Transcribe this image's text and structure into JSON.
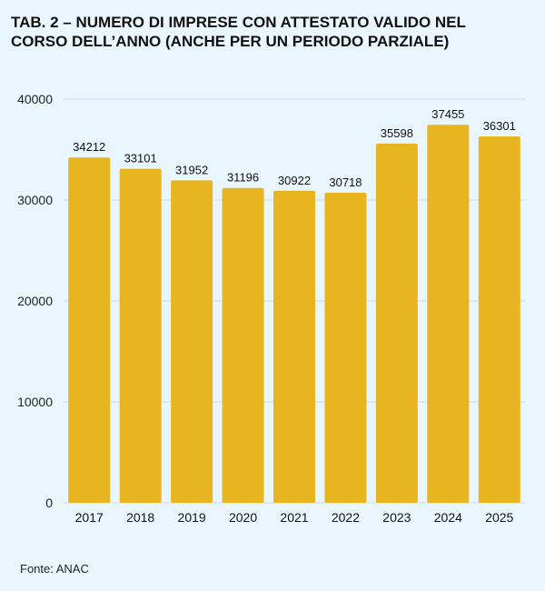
{
  "chart_data": {
    "type": "bar",
    "title_line1": "TAB. 2 – NUMERO DI IMPRESE CON ATTESTATO VALIDO NEL",
    "title_line2": "CORSO DELL’ANNO (ANCHE PER UN PERIODO PARZIALE)",
    "categories": [
      "2017",
      "2018",
      "2019",
      "2020",
      "2021",
      "2022",
      "2023",
      "2024",
      "2025"
    ],
    "values": [
      34212,
      33101,
      31952,
      31196,
      30922,
      30718,
      35598,
      37455,
      36301
    ],
    "ylim": [
      0,
      40000
    ],
    "yticks": [
      0,
      10000,
      20000,
      30000,
      40000
    ],
    "grid": true,
    "bar_color": "#e8b420",
    "source": "Fonte: ANAC"
  }
}
